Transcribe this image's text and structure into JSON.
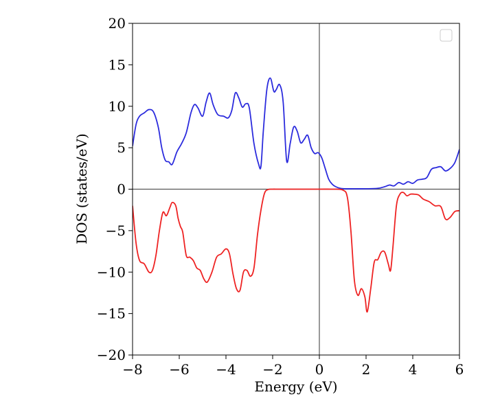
{
  "chart_data": {
    "type": "line",
    "xlabel": "Energy (eV)",
    "ylabel": "DOS (states/eV)",
    "xlim": [
      -8,
      6
    ],
    "ylim": [
      -20,
      20
    ],
    "xticks": [
      -8,
      -6,
      -4,
      -2,
      0,
      2,
      4,
      6
    ],
    "xtick_labels": [
      "−8",
      "−6",
      "−4",
      "−2",
      "0",
      "2",
      "4",
      "6"
    ],
    "yticks": [
      -20,
      -15,
      -10,
      -5,
      0,
      5,
      10,
      15,
      20
    ],
    "ytick_labels": [
      "−20",
      "−15",
      "−10",
      "−5",
      "0",
      "5",
      "10",
      "15",
      "20"
    ],
    "reference_lines": {
      "x": 0,
      "y": 0,
      "color": "#555555"
    },
    "legend": {
      "placement": "top-right",
      "entries": []
    },
    "grid": false,
    "series": [
      {
        "color": "#2b2bdd",
        "x": [
          -8.0,
          -7.85,
          -7.7,
          -7.5,
          -7.3,
          -7.1,
          -6.9,
          -6.75,
          -6.6,
          -6.45,
          -6.3,
          -6.1,
          -5.9,
          -5.7,
          -5.5,
          -5.35,
          -5.2,
          -5.0,
          -4.85,
          -4.7,
          -4.55,
          -4.35,
          -4.1,
          -3.9,
          -3.75,
          -3.6,
          -3.45,
          -3.3,
          -3.15,
          -3.0,
          -2.8,
          -2.6,
          -2.5,
          -2.4,
          -2.25,
          -2.1,
          -1.95,
          -1.85,
          -1.7,
          -1.55,
          -1.4,
          -1.25,
          -1.1,
          -0.95,
          -0.8,
          -0.65,
          -0.5,
          -0.35,
          -0.2,
          -0.05,
          0.1,
          0.25,
          0.4,
          0.55,
          0.7,
          0.9,
          1.1,
          1.5,
          2.0,
          2.5,
          2.8,
          3.0,
          3.2,
          3.4,
          3.6,
          3.8,
          4.0,
          4.2,
          4.4,
          4.6,
          4.8,
          5.0,
          5.2,
          5.4,
          5.6,
          5.8,
          6.0
        ],
        "y": [
          5.2,
          7.8,
          8.8,
          9.2,
          9.6,
          9.3,
          7.5,
          5.0,
          3.5,
          3.3,
          3.0,
          4.5,
          5.5,
          6.8,
          9.2,
          10.2,
          9.8,
          8.8,
          10.5,
          11.6,
          10.2,
          9.0,
          8.8,
          8.6,
          9.5,
          11.6,
          11.0,
          9.9,
          10.3,
          9.8,
          5.5,
          3.0,
          2.8,
          7.0,
          12.0,
          13.4,
          11.8,
          12.0,
          12.6,
          10.5,
          3.4,
          5.5,
          7.5,
          7.0,
          5.6,
          6.0,
          6.5,
          5.0,
          4.3,
          4.4,
          3.8,
          2.5,
          1.2,
          0.6,
          0.3,
          0.1,
          0.05,
          0.05,
          0.05,
          0.1,
          0.3,
          0.5,
          0.4,
          0.8,
          0.6,
          0.9,
          0.7,
          1.1,
          1.2,
          1.4,
          2.4,
          2.6,
          2.7,
          2.2,
          2.5,
          3.2,
          4.8
        ]
      },
      {
        "color": "#ee2222",
        "x": [
          -8.0,
          -7.85,
          -7.7,
          -7.5,
          -7.3,
          -7.15,
          -7.0,
          -6.85,
          -6.7,
          -6.55,
          -6.4,
          -6.3,
          -6.15,
          -6.05,
          -5.95,
          -5.85,
          -5.7,
          -5.55,
          -5.4,
          -5.25,
          -5.1,
          -4.95,
          -4.8,
          -4.6,
          -4.4,
          -4.2,
          -4.0,
          -3.85,
          -3.7,
          -3.55,
          -3.4,
          -3.25,
          -3.1,
          -2.95,
          -2.8,
          -2.65,
          -2.5,
          -2.35,
          -2.2,
          -2.0,
          -1.8,
          -1.5,
          -1.0,
          0.0,
          0.5,
          1.0,
          1.2,
          1.35,
          1.5,
          1.65,
          1.8,
          1.95,
          2.05,
          2.2,
          2.35,
          2.5,
          2.65,
          2.8,
          2.95,
          3.05,
          3.15,
          3.3,
          3.45,
          3.6,
          3.75,
          3.9,
          4.05,
          4.25,
          4.45,
          4.7,
          4.95,
          5.2,
          5.4,
          5.6,
          5.8,
          6.0
        ],
        "y": [
          -2.0,
          -6.5,
          -8.6,
          -9.0,
          -10.0,
          -9.8,
          -8.0,
          -5.0,
          -2.8,
          -3.2,
          -2.2,
          -1.6,
          -2.0,
          -3.5,
          -4.5,
          -5.2,
          -8.0,
          -8.2,
          -8.6,
          -9.5,
          -9.8,
          -10.8,
          -11.2,
          -10.0,
          -8.2,
          -7.8,
          -7.2,
          -7.8,
          -10.2,
          -12.0,
          -12.2,
          -10.0,
          -9.8,
          -10.5,
          -9.5,
          -5.5,
          -2.5,
          -0.5,
          -0.05,
          0.0,
          0.0,
          0.0,
          0.0,
          0.0,
          0.0,
          -0.1,
          -1.0,
          -5.0,
          -11.0,
          -12.8,
          -12.0,
          -13.0,
          -14.8,
          -12.0,
          -8.8,
          -8.5,
          -7.6,
          -7.6,
          -9.0,
          -9.8,
          -7.0,
          -2.0,
          -0.6,
          -0.4,
          -0.8,
          -0.6,
          -0.6,
          -0.7,
          -1.2,
          -1.5,
          -2.0,
          -2.1,
          -3.6,
          -3.4,
          -2.7,
          -2.6
        ]
      }
    ]
  }
}
